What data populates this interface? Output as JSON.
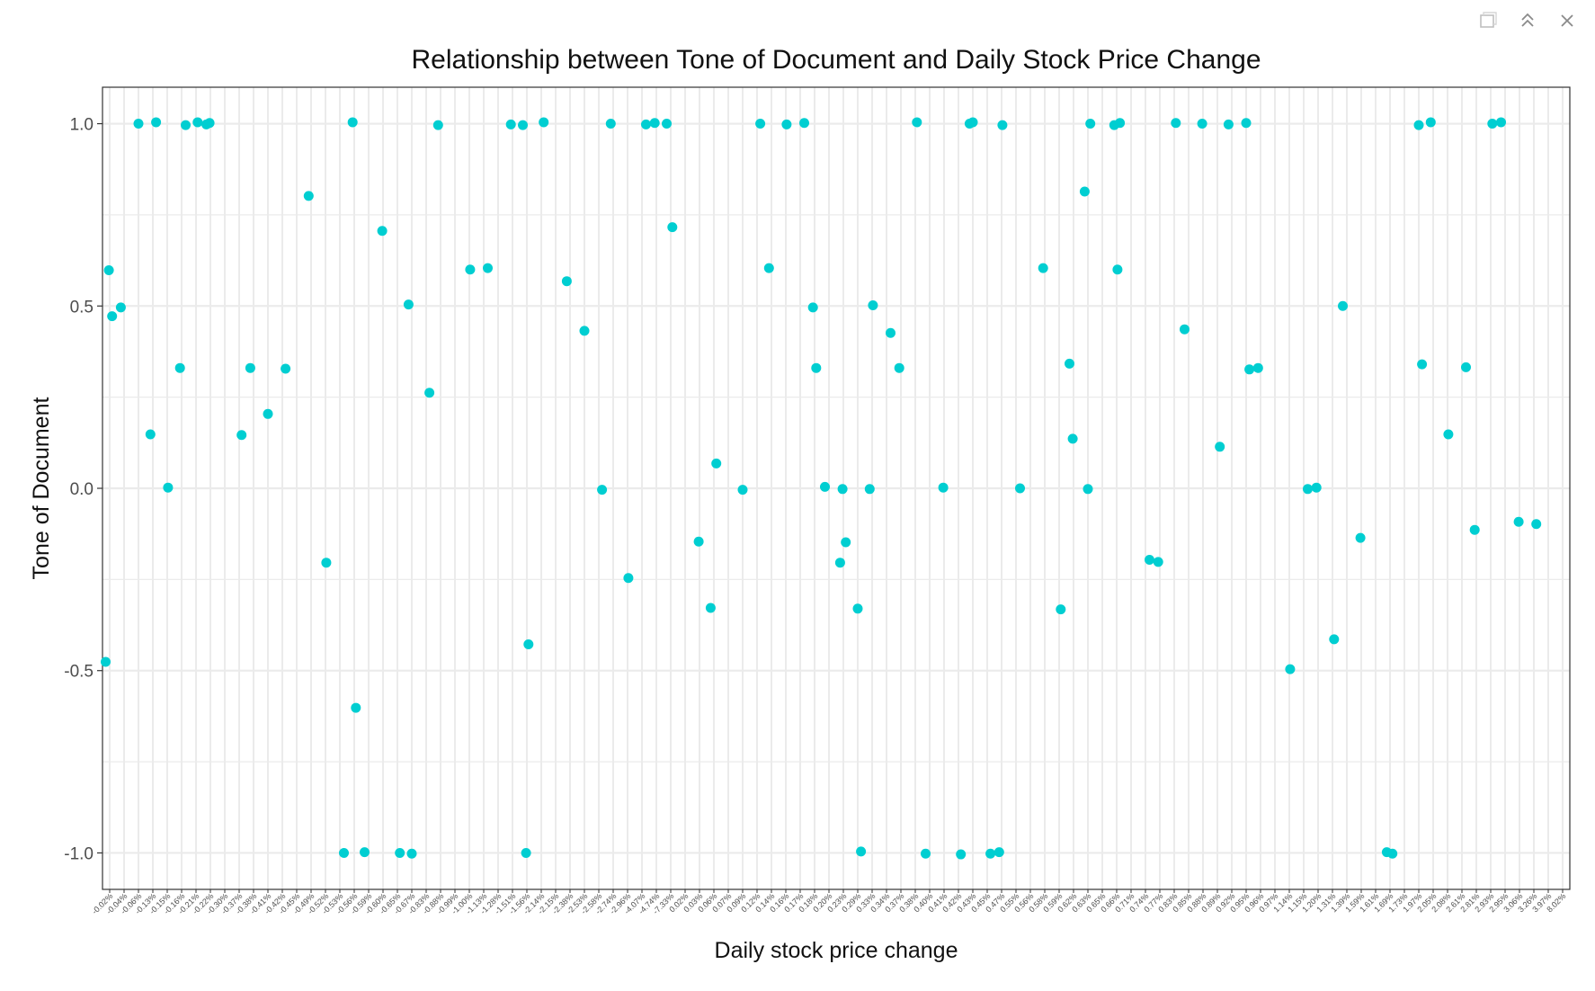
{
  "window": {
    "controls": [
      {
        "name": "pages-icon",
        "glyph": "❐"
      },
      {
        "name": "collapse-icon",
        "glyph": "︽"
      },
      {
        "name": "close-icon",
        "glyph": "✕"
      }
    ]
  },
  "chart_data": {
    "type": "scatter",
    "title": "Relationship between Tone of Document and Daily Stock Price Change",
    "xlabel": "Daily stock price change",
    "ylabel": "Tone of Document",
    "ylim": [
      -1.1,
      1.1
    ],
    "yticks": [
      "1.0",
      "0.5",
      "0.0",
      "-0.5",
      "-1.0"
    ],
    "grid": true,
    "point_color": "#00CED1",
    "panel_background": "#ffffff",
    "grid_color": "#ebebeb",
    "categories": [
      "-0.02%",
      "-0.04%",
      "-0.06%",
      "-0.13%",
      "-0.15%",
      "-0.16%",
      "-0.21%",
      "-0.22%",
      "-0.30%",
      "-0.37%",
      "-0.38%",
      "-0.41%",
      "-0.42%",
      "-0.45%",
      "-0.49%",
      "-0.52%",
      "-0.53%",
      "-0.56%",
      "-0.59%",
      "-0.60%",
      "-0.65%",
      "-0.67%",
      "-0.83%",
      "-0.88%",
      "-0.99%",
      "-1.00%",
      "-1.13%",
      "-1.28%",
      "-1.51%",
      "-1.56%",
      "-2.14%",
      "-2.15%",
      "-2.38%",
      "-2.53%",
      "-2.58%",
      "-2.74%",
      "-2.96%",
      "-4.07%",
      "-4.74%",
      "-7.33%",
      "0.02%",
      "0.03%",
      "0.06%",
      "0.07%",
      "0.09%",
      "0.12%",
      "0.14%",
      "0.16%",
      "0.17%",
      "0.18%",
      "0.20%",
      "0.23%",
      "0.29%",
      "0.33%",
      "0.34%",
      "0.37%",
      "0.38%",
      "0.40%",
      "0.41%",
      "0.42%",
      "0.43%",
      "0.45%",
      "0.47%",
      "0.55%",
      "0.56%",
      "0.58%",
      "0.59%",
      "0.62%",
      "0.63%",
      "0.65%",
      "0.66%",
      "0.71%",
      "0.74%",
      "0.77%",
      "0.83%",
      "0.85%",
      "0.88%",
      "0.89%",
      "0.92%",
      "0.95%",
      "0.96%",
      "0.97%",
      "1.14%",
      "1.15%",
      "1.20%",
      "1.31%",
      "1.39%",
      "1.59%",
      "1.61%",
      "1.69%",
      "1.73%",
      "1.97%",
      "2.05%",
      "2.08%",
      "2.61%",
      "2.81%",
      "2.93%",
      "2.95%",
      "3.06%",
      "3.26%",
      "3.97%",
      "8.02%"
    ],
    "points": [
      {
        "x": "-0.02%",
        "y": -0.48
      },
      {
        "x": "-0.02%",
        "y": 0.6
      },
      {
        "x": "-0.02%",
        "y": 0.47
      },
      {
        "x": "-0.04%",
        "y": 0.5
      },
      {
        "x": "-0.06%",
        "y": 1.0
      },
      {
        "x": "-0.13%",
        "y": 1.0
      },
      {
        "x": "-0.13%",
        "y": 0.15
      },
      {
        "x": "-0.15%",
        "y": 0.0
      },
      {
        "x": "-0.16%",
        "y": 1.0
      },
      {
        "x": "-0.16%",
        "y": 0.33
      },
      {
        "x": "-0.21%",
        "y": 1.0
      },
      {
        "x": "-0.22%",
        "y": 1.0
      },
      {
        "x": "-0.22%",
        "y": 1.0
      },
      {
        "x": "-0.37%",
        "y": 0.15
      },
      {
        "x": "-0.38%",
        "y": 0.33
      },
      {
        "x": "-0.41%",
        "y": 0.2
      },
      {
        "x": "-0.42%",
        "y": 0.33
      },
      {
        "x": "-0.49%",
        "y": 0.8
      },
      {
        "x": "-0.52%",
        "y": -0.2
      },
      {
        "x": "-0.53%",
        "y": -1.0
      },
      {
        "x": "-0.56%",
        "y": 1.0
      },
      {
        "x": "-0.56%",
        "y": -0.6
      },
      {
        "x": "-0.59%",
        "y": -1.0
      },
      {
        "x": "-0.60%",
        "y": 0.71
      },
      {
        "x": "-0.65%",
        "y": -1.0
      },
      {
        "x": "-0.67%",
        "y": 0.5
      },
      {
        "x": "-0.67%",
        "y": -1.0
      },
      {
        "x": "-0.83%",
        "y": 0.26
      },
      {
        "x": "-0.88%",
        "y": 1.0
      },
      {
        "x": "-1.00%",
        "y": 0.6
      },
      {
        "x": "-1.13%",
        "y": 0.6
      },
      {
        "x": "-1.51%",
        "y": 1.0
      },
      {
        "x": "-1.56%",
        "y": -0.43
      },
      {
        "x": "-1.56%",
        "y": 1.0
      },
      {
        "x": "-1.56%",
        "y": -1.0
      },
      {
        "x": "-2.14%",
        "y": 1.0
      },
      {
        "x": "-2.38%",
        "y": 0.57
      },
      {
        "x": "-2.53%",
        "y": 0.43
      },
      {
        "x": "-2.58%",
        "y": 0.0
      },
      {
        "x": "-2.74%",
        "y": 1.0
      },
      {
        "x": "-2.96%",
        "y": -0.25
      },
      {
        "x": "-4.07%",
        "y": 1.0
      },
      {
        "x": "-4.74%",
        "y": 1.0
      },
      {
        "x": "-7.33%",
        "y": 0.72
      },
      {
        "x": "-7.33%",
        "y": 1.0
      },
      {
        "x": "0.03%",
        "y": -0.15
      },
      {
        "x": "0.06%",
        "y": 0.07
      },
      {
        "x": "0.06%",
        "y": -0.33
      },
      {
        "x": "0.09%",
        "y": 0.0
      },
      {
        "x": "0.12%",
        "y": 1.0
      },
      {
        "x": "0.14%",
        "y": 0.6
      },
      {
        "x": "0.16%",
        "y": 1.0
      },
      {
        "x": "0.17%",
        "y": 1.0
      },
      {
        "x": "0.18%",
        "y": 0.5
      },
      {
        "x": "0.18%",
        "y": 0.33
      },
      {
        "x": "0.20%",
        "y": 0.0
      },
      {
        "x": "0.23%",
        "y": 0.0
      },
      {
        "x": "0.23%",
        "y": -0.15
      },
      {
        "x": "0.23%",
        "y": -0.2
      },
      {
        "x": "0.29%",
        "y": -0.33
      },
      {
        "x": "0.29%",
        "y": -1.0
      },
      {
        "x": "0.33%",
        "y": 0.0
      },
      {
        "x": "0.33%",
        "y": 0.5
      },
      {
        "x": "0.34%",
        "y": 0.43
      },
      {
        "x": "0.37%",
        "y": 0.33
      },
      {
        "x": "0.38%",
        "y": 1.0
      },
      {
        "x": "0.40%",
        "y": -1.0
      },
      {
        "x": "0.41%",
        "y": 0.0
      },
      {
        "x": "0.42%",
        "y": -1.0
      },
      {
        "x": "0.43%",
        "y": 1.0
      },
      {
        "x": "0.43%",
        "y": 1.0
      },
      {
        "x": "0.45%",
        "y": -1.0
      },
      {
        "x": "0.47%",
        "y": -1.0
      },
      {
        "x": "0.47%",
        "y": 1.0
      },
      {
        "x": "0.55%",
        "y": 0.0
      },
      {
        "x": "0.58%",
        "y": 0.6
      },
      {
        "x": "0.59%",
        "y": -0.33
      },
      {
        "x": "0.62%",
        "y": 0.34
      },
      {
        "x": "0.62%",
        "y": 0.14
      },
      {
        "x": "0.63%",
        "y": 1.0
      },
      {
        "x": "0.63%",
        "y": 0.81
      },
      {
        "x": "0.63%",
        "y": 0.0
      },
      {
        "x": "0.66%",
        "y": 1.0
      },
      {
        "x": "0.66%",
        "y": 1.0
      },
      {
        "x": "0.66%",
        "y": 0.6
      },
      {
        "x": "0.74%",
        "y": -0.2
      },
      {
        "x": "0.77%",
        "y": -0.2
      },
      {
        "x": "0.83%",
        "y": 1.0
      },
      {
        "x": "0.85%",
        "y": 0.44
      },
      {
        "x": "0.88%",
        "y": 1.0
      },
      {
        "x": "0.89%",
        "y": 0.11
      },
      {
        "x": "0.92%",
        "y": 1.0
      },
      {
        "x": "0.95%",
        "y": 1.0
      },
      {
        "x": "0.95%",
        "y": 0.33
      },
      {
        "x": "0.96%",
        "y": 0.33
      },
      {
        "x": "1.14%",
        "y": -0.5
      },
      {
        "x": "1.15%",
        "y": 0.0
      },
      {
        "x": "1.20%",
        "y": 0.0
      },
      {
        "x": "1.31%",
        "y": -0.41
      },
      {
        "x": "1.39%",
        "y": 0.5
      },
      {
        "x": "1.59%",
        "y": -0.14
      },
      {
        "x": "1.69%",
        "y": -1.0
      },
      {
        "x": "1.69%",
        "y": -1.0
      },
      {
        "x": "1.97%",
        "y": 1.0
      },
      {
        "x": "1.97%",
        "y": 0.34
      },
      {
        "x": "2.05%",
        "y": 1.0
      },
      {
        "x": "2.08%",
        "y": 0.15
      },
      {
        "x": "2.61%",
        "y": 0.33
      },
      {
        "x": "2.81%",
        "y": -0.11
      },
      {
        "x": "2.93%",
        "y": 1.0
      },
      {
        "x": "2.95%",
        "y": 1.0
      },
      {
        "x": "3.06%",
        "y": -0.09
      },
      {
        "x": "3.26%",
        "y": -0.1
      }
    ]
  }
}
